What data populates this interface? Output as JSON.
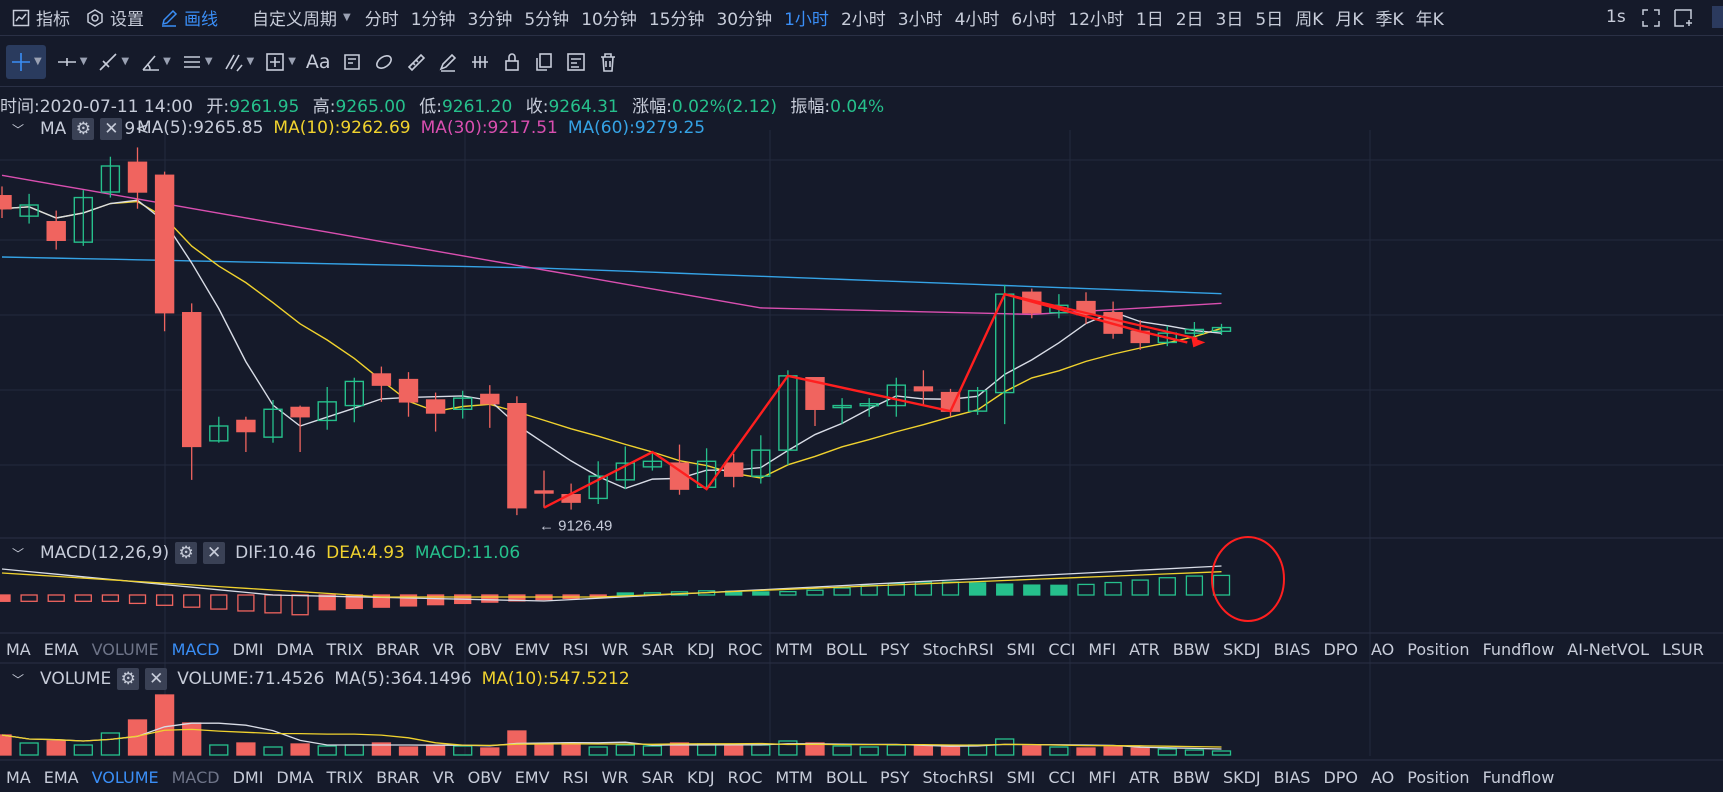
{
  "topbar": {
    "indicators": "指标",
    "settings": "设置",
    "draw": "画线",
    "custom_period": "自定义周期",
    "periods": [
      "分时",
      "1分钟",
      "3分钟",
      "5分钟",
      "10分钟",
      "15分钟",
      "30分钟",
      "1小时",
      "2小时",
      "3小时",
      "4小时",
      "6小时",
      "12小时",
      "1日",
      "2日",
      "3日",
      "5日",
      "周K",
      "月K",
      "季K",
      "年K"
    ],
    "active_period": "1小时",
    "refresh": "1s"
  },
  "toolbar": {
    "tools": [
      "crosshair",
      "horizontal-line",
      "trend-line",
      "angle",
      "parallel-channel",
      "fibonacci",
      "rectangle",
      "text",
      "measure",
      "brush",
      "ruler",
      "pencil",
      "pattern",
      "lock",
      "copy",
      "templates",
      "trash"
    ],
    "text_tool": "Aa"
  },
  "info": {
    "time_label": "时间:",
    "time": "2020-07-11 14:00",
    "open_label": "开:",
    "open": "9261.95",
    "high_label": "高:",
    "high": "9265.00",
    "low_label": "低:",
    "low": "9261.20",
    "close_label": "收:",
    "close": "9264.31",
    "chg_label": "涨幅:",
    "chg": "0.02%(2.12)",
    "amp_label": "振幅:",
    "amp": "0.04%"
  },
  "ma_legend": {
    "name": "MA",
    "ma5": "MA(5):9265.85",
    "ma10": "MA(10):9262.69",
    "ma30": "MA(30):9217.51",
    "ma60": "MA(60):9279.25",
    "stub": "9<"
  },
  "low_marker": "← 9126.49",
  "macd_legend": {
    "name": "MACD(12,26,9)",
    "dif": "DIF:10.46",
    "dea": "DEA:4.93",
    "macd": "MACD:11.06"
  },
  "vol_legend": {
    "name": "VOLUME",
    "vol": "VOLUME:71.4526",
    "ma5": "MA(5):364.1496",
    "ma10": "MA(10):547.5212"
  },
  "tabs1": [
    "MA",
    "EMA",
    "VOLUME",
    "MACD",
    "DMI",
    "DMA",
    "TRIX",
    "BRAR",
    "VR",
    "OBV",
    "EMV",
    "RSI",
    "WR",
    "SAR",
    "KDJ",
    "ROC",
    "MTM",
    "BOLL",
    "PSY",
    "StochRSI",
    "SMI",
    "CCI",
    "MFI",
    "ATR",
    "BBW",
    "SKDJ",
    "BIAS",
    "DPO",
    "AO",
    "Position",
    "Fundflow",
    "AI-NetVOL",
    "LSUR"
  ],
  "tabs1_active": "MACD",
  "tabs1_dim": "VOLUME",
  "tabs2": [
    "MA",
    "EMA",
    "VOLUME",
    "MACD",
    "DMI",
    "DMA",
    "TRIX",
    "BRAR",
    "VR",
    "OBV",
    "EMV",
    "RSI",
    "WR",
    "SAR",
    "KDJ",
    "ROC",
    "MTM",
    "BOLL",
    "PSY",
    "StochRSI",
    "SMI",
    "CCI",
    "MFI",
    "ATR",
    "BBW",
    "SKDJ",
    "BIAS",
    "DPO",
    "AO",
    "Position",
    "Fundflow"
  ],
  "tabs2_active": "VOLUME",
  "tabs2_dim": "MACD",
  "colors": {
    "up": "#26c08c",
    "down": "#f0645f",
    "ma5": "#d8dce6",
    "ma10": "#f0d22e",
    "ma30": "#d94fb0",
    "ma60": "#35a3e6",
    "accent": "#3a8ef6",
    "annotation": "#ff1f1f"
  },
  "chart_data": {
    "type": "candlestick",
    "interval": "1小时",
    "candles": [
      [
        9295,
        9288,
        9300,
        9283
      ],
      [
        9284,
        9290,
        9296,
        9280
      ],
      [
        9281,
        9271,
        9287,
        9266
      ],
      [
        9270,
        9294,
        9298,
        9268
      ],
      [
        9297,
        9311,
        9316,
        9294
      ],
      [
        9313,
        9297,
        9321,
        9288
      ],
      [
        9306,
        9232,
        9308,
        9222
      ],
      [
        9232,
        9160,
        9237,
        9142
      ],
      [
        9163,
        9171,
        9176,
        9162
      ],
      [
        9174,
        9168,
        9176,
        9157
      ],
      [
        9165,
        9180,
        9185,
        9162
      ],
      [
        9181,
        9176,
        9182,
        9157
      ],
      [
        9174,
        9184,
        9192,
        9169
      ],
      [
        9182,
        9195,
        9197,
        9173
      ],
      [
        9199,
        9193,
        9203,
        9184
      ],
      [
        9196,
        9184,
        9200,
        9176
      ],
      [
        9185,
        9178,
        9189,
        9168
      ],
      [
        9180,
        9186,
        9190,
        9175
      ],
      [
        9188,
        9183,
        9193,
        9170
      ],
      [
        9183,
        9127,
        9187,
        9123
      ],
      [
        9136,
        9135,
        9147,
        9127
      ],
      [
        9134,
        9130,
        9140,
        9126
      ],
      [
        9132,
        9144,
        9152,
        9129
      ],
      [
        9142,
        9151,
        9160,
        9137
      ],
      [
        9149,
        9152,
        9157,
        9147
      ],
      [
        9151,
        9137,
        9161,
        9134
      ],
      [
        9138,
        9152,
        9159,
        9137
      ],
      [
        9151,
        9144,
        9156,
        9138
      ],
      [
        9144,
        9158,
        9166,
        9140
      ],
      [
        9158,
        9198,
        9201,
        9150
      ],
      [
        9197,
        9180,
        9197,
        9171
      ],
      [
        9182,
        9182,
        9186,
        9172
      ],
      [
        9182,
        9183,
        9186,
        9176
      ],
      [
        9182,
        9193,
        9197,
        9176
      ],
      [
        9192,
        9190,
        9201,
        9182
      ],
      [
        9189,
        9179,
        9191,
        9176
      ],
      [
        9179,
        9190,
        9192,
        9177
      ],
      [
        9189,
        9242,
        9247,
        9172
      ],
      [
        9243,
        9232,
        9245,
        9229
      ],
      [
        9232,
        9236,
        9242,
        9229
      ],
      [
        9238,
        9231,
        9243,
        9226
      ],
      [
        9232,
        9221,
        9238,
        9218
      ],
      [
        9222,
        9216,
        9228,
        9212
      ],
      [
        9216,
        9221,
        9225,
        9214
      ],
      [
        9221,
        9223,
        9227,
        9219
      ],
      [
        9222,
        9224,
        9226,
        9220
      ]
    ]
  }
}
